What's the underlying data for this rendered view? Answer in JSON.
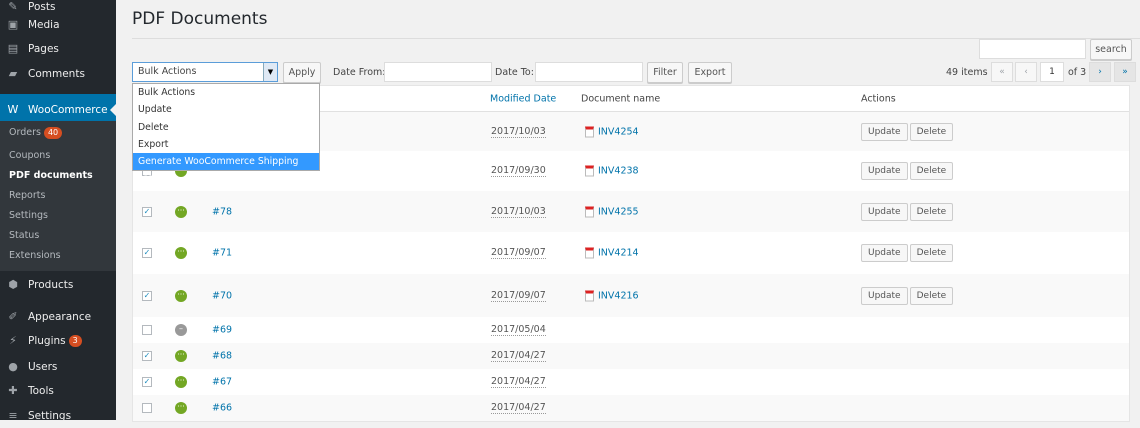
{
  "sidebar": {
    "items": [
      {
        "label": "Posts",
        "icon": "pin-icon"
      },
      {
        "label": "Media",
        "icon": "media-icon"
      },
      {
        "label": "Pages",
        "icon": "pages-icon"
      },
      {
        "label": "Comments",
        "icon": "comments-icon"
      },
      {
        "label": "WooCommerce",
        "icon": "woo-icon"
      },
      {
        "label": "Products",
        "icon": "box-icon"
      },
      {
        "label": "Appearance",
        "icon": "brush-icon"
      },
      {
        "label": "Plugins",
        "icon": "plug-icon",
        "badge": "3"
      },
      {
        "label": "Users",
        "icon": "user-icon"
      },
      {
        "label": "Tools",
        "icon": "wrench-icon"
      },
      {
        "label": "Settings",
        "icon": "settings-icon"
      }
    ],
    "submenu": [
      {
        "label": "Orders",
        "badge": "40"
      },
      {
        "label": "Coupons"
      },
      {
        "label": "PDF documents"
      },
      {
        "label": "Reports"
      },
      {
        "label": "Settings"
      },
      {
        "label": "Status"
      },
      {
        "label": "Extensions"
      }
    ]
  },
  "page": {
    "title": "PDF Documents"
  },
  "toolbar": {
    "bulk_selected": "Bulk Actions",
    "apply": "Apply",
    "date_from": "Date From:",
    "date_to": "Date To:",
    "filter": "Filter",
    "export": "Export",
    "search": "search",
    "items": "49 items",
    "first": "«",
    "prev": "‹",
    "page": "1",
    "of": "of 3",
    "next": "›",
    "last": "»"
  },
  "dropdown": [
    "Bulk Actions",
    "Update",
    "Delete",
    "Export",
    "Generate WooCommerce Shipping Labels"
  ],
  "columns": {
    "modified": "Modified Date",
    "document": "Document name",
    "actions": "Actions"
  },
  "row_actions": {
    "update": "Update",
    "delete": "Delete"
  },
  "rows": [
    {
      "checked": false,
      "status": "completed",
      "order": "",
      "date": "2017/10/03",
      "doc": "INV4254"
    },
    {
      "checked": false,
      "status": "completed",
      "order": "",
      "date": "2017/09/30",
      "doc": "INV4238"
    },
    {
      "checked": true,
      "status": "completed",
      "order": "#78",
      "date": "2017/10/03",
      "doc": "INV4255"
    },
    {
      "checked": true,
      "status": "completed",
      "order": "#71",
      "date": "2017/09/07",
      "doc": "INV4214"
    },
    {
      "checked": true,
      "status": "completed",
      "order": "#70",
      "date": "2017/09/07",
      "doc": "INV4216"
    },
    {
      "checked": false,
      "status": "cancelled",
      "order": "#69",
      "date": "2017/05/04",
      "doc": ""
    },
    {
      "checked": true,
      "status": "completed",
      "order": "#68",
      "date": "2017/04/27",
      "doc": ""
    },
    {
      "checked": true,
      "status": "completed",
      "order": "#67",
      "date": "2017/04/27",
      "doc": ""
    },
    {
      "checked": false,
      "status": "completed",
      "order": "#66",
      "date": "2017/04/27",
      "doc": ""
    }
  ],
  "colors": {
    "sidebar": "#23282d",
    "accent": "#0073aa",
    "highlight": "#3399ff",
    "status_green": "#73a724"
  }
}
